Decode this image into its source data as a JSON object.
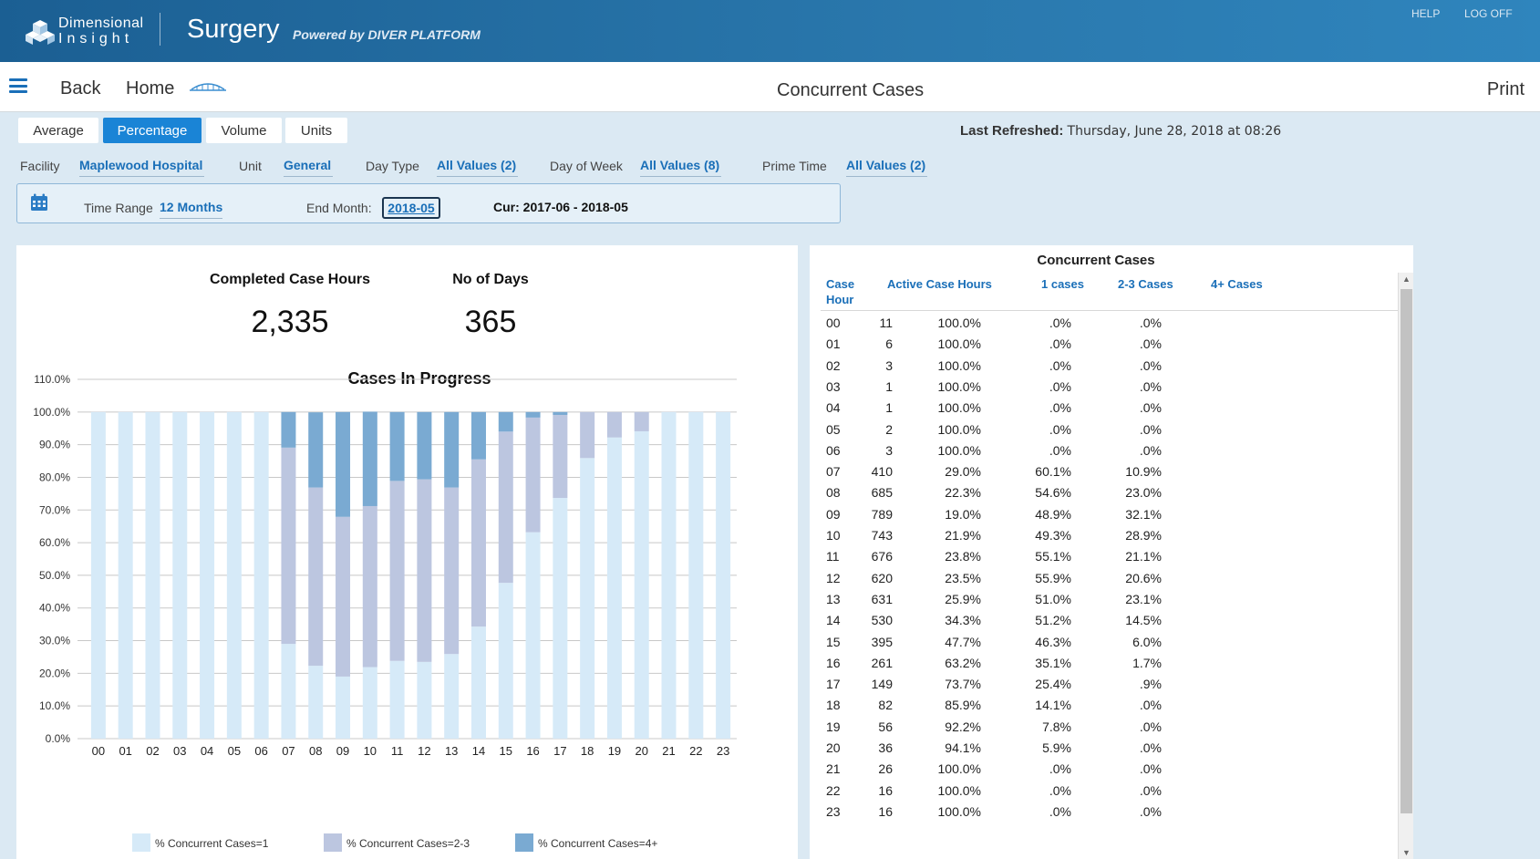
{
  "header": {
    "logo_line1": "Dimensional",
    "logo_line2": "Insight",
    "app_title": "Surgery",
    "powered_by": "Powered by DIVER PLATFORM",
    "help": "HELP",
    "logoff": "LOG OFF"
  },
  "nav": {
    "back": "Back",
    "home": "Home",
    "page_title": "Concurrent Cases",
    "print": "Print"
  },
  "tabs": [
    {
      "label": "Average",
      "active": false
    },
    {
      "label": "Percentage",
      "active": true
    },
    {
      "label": "Volume",
      "active": false
    },
    {
      "label": "Units",
      "active": false
    }
  ],
  "last_refreshed": {
    "label": "Last Refreshed:",
    "value": "Thursday, June 28, 2018 at 08:26"
  },
  "filters": {
    "facility_label": "Facility",
    "facility_value": "Maplewood Hospital",
    "unit_label": "Unit",
    "unit_value": "General",
    "daytype_label": "Day Type",
    "daytype_value": "All Values (2)",
    "dow_label": "Day of Week",
    "dow_value": "All Values (8)",
    "prime_label": "Prime Time",
    "prime_value": "All Values (2)"
  },
  "time": {
    "range_label": "Time Range",
    "range_value": "12 Months",
    "end_label": "End Month:",
    "end_value": "2018-05",
    "cur": "Cur: 2017-06 - 2018-05"
  },
  "kpis": {
    "completed_label": "Completed Case Hours",
    "completed_value": "2,335",
    "days_label": "No of Days",
    "days_value": "365"
  },
  "colors": {
    "series1": "#d6eaf8",
    "series2": "#bcc6e0",
    "series3": "#7aaad2",
    "accent": "#1a84d6",
    "header": "#1b5f93"
  },
  "chart_data": {
    "type": "bar",
    "stacked": true,
    "title": "Cases In Progress",
    "categories": [
      "00",
      "01",
      "02",
      "03",
      "04",
      "05",
      "06",
      "07",
      "08",
      "09",
      "10",
      "11",
      "12",
      "13",
      "14",
      "15",
      "16",
      "17",
      "18",
      "19",
      "20",
      "21",
      "22",
      "23"
    ],
    "yticks": [
      "0.0%",
      "10.0%",
      "20.0%",
      "30.0%",
      "40.0%",
      "50.0%",
      "60.0%",
      "70.0%",
      "80.0%",
      "90.0%",
      "100.0%",
      "110.0%"
    ],
    "ylim": [
      0,
      110
    ],
    "grid": true,
    "legend_position": "bottom",
    "series": [
      {
        "name": "% Concurrent Cases=1",
        "values": [
          100,
          100,
          100,
          100,
          100,
          100,
          100,
          29.0,
          22.3,
          19.0,
          21.9,
          23.8,
          23.5,
          25.9,
          34.3,
          47.7,
          63.2,
          73.7,
          85.9,
          92.2,
          94.1,
          100,
          100,
          100
        ]
      },
      {
        "name": "% Concurrent Cases=2-3",
        "values": [
          0,
          0,
          0,
          0,
          0,
          0,
          0,
          60.1,
          54.6,
          48.9,
          49.3,
          55.1,
          55.9,
          51.0,
          51.2,
          46.3,
          35.1,
          25.4,
          14.1,
          7.8,
          5.9,
          0,
          0,
          0
        ]
      },
      {
        "name": "% Concurrent Cases=4+",
        "values": [
          0,
          0,
          0,
          0,
          0,
          0,
          0,
          10.9,
          23.0,
          32.1,
          28.9,
          21.1,
          20.6,
          23.1,
          14.5,
          6.0,
          1.7,
          0.9,
          0,
          0,
          0,
          0,
          0,
          0
        ]
      }
    ]
  },
  "table": {
    "title": "Concurrent Cases",
    "headers": [
      "Case\nHour",
      "Active Case Hours",
      "1 cases",
      "2-3 Cases",
      "4+ Cases"
    ],
    "rows": [
      [
        "00",
        "11",
        "100.0%",
        ".0%",
        ".0%"
      ],
      [
        "01",
        "6",
        "100.0%",
        ".0%",
        ".0%"
      ],
      [
        "02",
        "3",
        "100.0%",
        ".0%",
        ".0%"
      ],
      [
        "03",
        "1",
        "100.0%",
        ".0%",
        ".0%"
      ],
      [
        "04",
        "1",
        "100.0%",
        ".0%",
        ".0%"
      ],
      [
        "05",
        "2",
        "100.0%",
        ".0%",
        ".0%"
      ],
      [
        "06",
        "3",
        "100.0%",
        ".0%",
        ".0%"
      ],
      [
        "07",
        "410",
        "29.0%",
        "60.1%",
        "10.9%"
      ],
      [
        "08",
        "685",
        "22.3%",
        "54.6%",
        "23.0%"
      ],
      [
        "09",
        "789",
        "19.0%",
        "48.9%",
        "32.1%"
      ],
      [
        "10",
        "743",
        "21.9%",
        "49.3%",
        "28.9%"
      ],
      [
        "11",
        "676",
        "23.8%",
        "55.1%",
        "21.1%"
      ],
      [
        "12",
        "620",
        "23.5%",
        "55.9%",
        "20.6%"
      ],
      [
        "13",
        "631",
        "25.9%",
        "51.0%",
        "23.1%"
      ],
      [
        "14",
        "530",
        "34.3%",
        "51.2%",
        "14.5%"
      ],
      [
        "15",
        "395",
        "47.7%",
        "46.3%",
        "6.0%"
      ],
      [
        "16",
        "261",
        "63.2%",
        "35.1%",
        "1.7%"
      ],
      [
        "17",
        "149",
        "73.7%",
        "25.4%",
        ".9%"
      ],
      [
        "18",
        "82",
        "85.9%",
        "14.1%",
        ".0%"
      ],
      [
        "19",
        "56",
        "92.2%",
        "7.8%",
        ".0%"
      ],
      [
        "20",
        "36",
        "94.1%",
        "5.9%",
        ".0%"
      ],
      [
        "21",
        "26",
        "100.0%",
        ".0%",
        ".0%"
      ],
      [
        "22",
        "16",
        "100.0%",
        ".0%",
        ".0%"
      ],
      [
        "23",
        "16",
        "100.0%",
        ".0%",
        ".0%"
      ]
    ]
  }
}
